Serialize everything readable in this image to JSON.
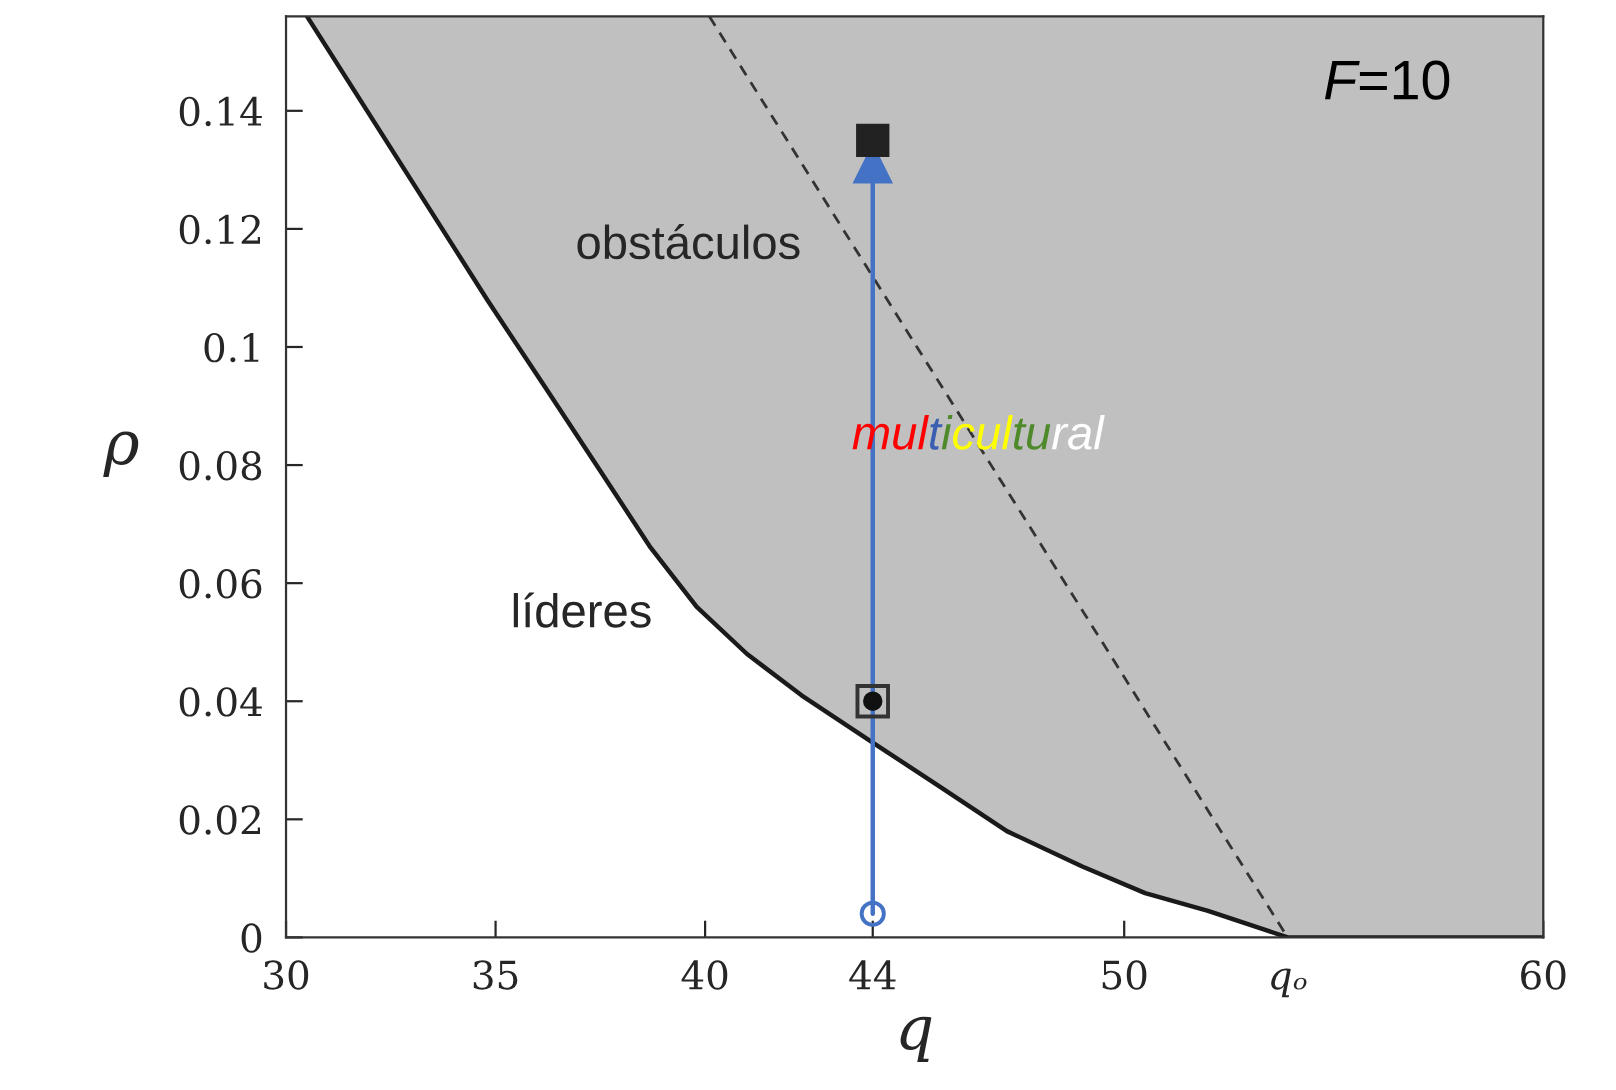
{
  "chart_data": {
    "type": "line",
    "xlabel": "q",
    "ylabel": "ρ",
    "xlim": [
      30,
      60
    ],
    "xticks": [
      30,
      35,
      40,
      44,
      50,
      {
        "value": 53.9,
        "label": "qₒ"
      },
      60
    ],
    "ylim": [
      0,
      0.156
    ],
    "yticks": [
      0,
      0.02,
      0.04,
      0.06,
      {
        "value": 0.08,
        "label": "0.08"
      },
      {
        "value": 0.1,
        "label": "0.1"
      },
      0.12,
      0.14
    ],
    "grid": false,
    "legend": false,
    "series": [
      {
        "color": "#1a1a1a",
        "x": [
          30.5,
          33.1,
          34.8,
          36.2,
          37.5,
          38.7,
          39.8,
          41.0,
          42.3,
          44.0,
          45.5,
          47.2,
          49.0,
          50.5,
          52.0,
          53.9,
          60
        ],
        "values": [
          0.156,
          0.127,
          0.108,
          0.093,
          0.079,
          0.066,
          0.056,
          0.048,
          0.041,
          0.033,
          0.026,
          0.018,
          0.012,
          0.0075,
          0.0045,
          0,
          0
        ],
        "lower": [
          0.156,
          0.127,
          0.108,
          0.093,
          0.079,
          0.066,
          0.056,
          0.048,
          0.041,
          0.033,
          0.026,
          0.018,
          0.012,
          0.0075,
          0.0045,
          0,
          0
        ],
        "upper": [
          0.156,
          0.156,
          0.156,
          0.156,
          0.156,
          0.156,
          0.156,
          0.156,
          0.156,
          0.156,
          0.156,
          0.156,
          0.156,
          0.156,
          0.156,
          0.156,
          0.156
        ],
        "line_style": "solid"
      },
      {
        "color": "#333333",
        "x": [
          40.1,
          53.9
        ],
        "values": [
          0.156,
          0
        ],
        "line_style": "dashed"
      },
      {
        "color": "#4472c4",
        "x": [
          44,
          44
        ],
        "values": [
          0.004,
          0.131
        ],
        "marker": "triangle"
      },
      {
        "type": "scatter",
        "color": "#4472c4",
        "x": [
          44
        ],
        "values": [
          0.004
        ],
        "marker": "circle"
      },
      {
        "type": "scatter",
        "color": "#333333",
        "x": [
          44
        ],
        "values": [
          0.04
        ],
        "marker": "square"
      },
      {
        "type": "scatter",
        "color": "#111111",
        "x": [
          44
        ],
        "values": [
          0.04
        ],
        "marker": "circle"
      },
      {
        "type": "scatter",
        "color": "#222222",
        "x": [
          44
        ],
        "values": [
          0.135
        ],
        "marker": "square"
      }
    ],
    "annotations": [
      "F=10",
      "obstáculos",
      "multicultural",
      "líderes"
    ]
  }
}
